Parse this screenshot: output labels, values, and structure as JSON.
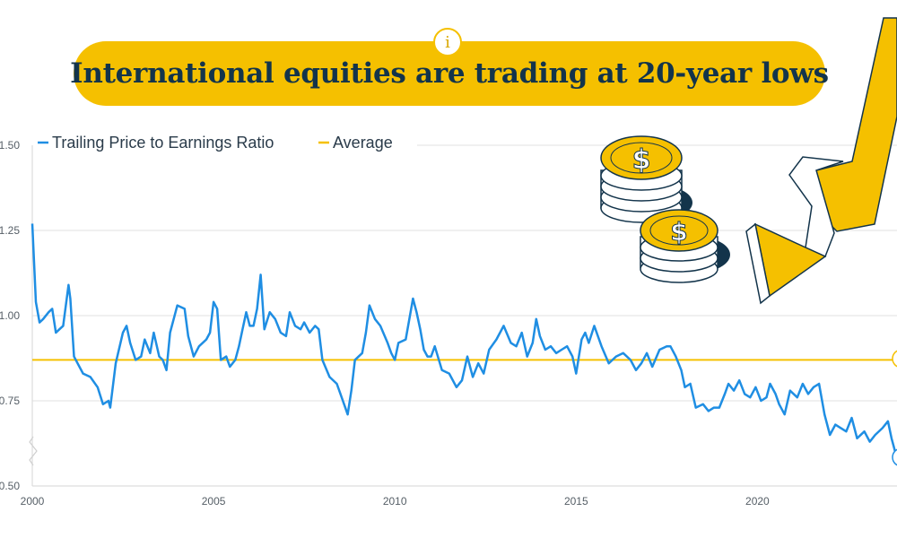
{
  "title": "International equities are trading at 20-year lows",
  "info_badge": "i",
  "colors": {
    "series": "#1f8ee3",
    "average": "#f5c000",
    "title_bg": "#f5c000",
    "title_text": "#13344b",
    "grid": "#e2e2e2"
  },
  "chart_data": {
    "type": "line",
    "title": "",
    "xlabel": "",
    "ylabel": "",
    "xlim": [
      2000,
      2023.8
    ],
    "ylim": [
      0.5,
      1.5
    ],
    "x_ticks": [
      2000,
      2005,
      2010,
      2015,
      2020
    ],
    "y_ticks": [
      0.5,
      0.75,
      1.0,
      1.25,
      1.5
    ],
    "y_tick_labels": [
      "0.50",
      "0.75",
      "1.00",
      "1.25",
      "1.50"
    ],
    "grid": true,
    "legend_position": "top-left",
    "series": [
      {
        "name": "Trailing Price to Earnings Ratio",
        "x": [
          2000.0,
          2000.1,
          2000.2,
          2000.3,
          2000.45,
          2000.55,
          2000.65,
          2000.75,
          2000.85,
          2001.0,
          2001.05,
          2001.15,
          2001.25,
          2001.4,
          2001.6,
          2001.8,
          2001.95,
          2002.1,
          2002.15,
          2002.3,
          2002.5,
          2002.6,
          2002.7,
          2002.85,
          2003.0,
          2003.1,
          2003.25,
          2003.35,
          2003.5,
          2003.6,
          2003.7,
          2003.8,
          2004.0,
          2004.2,
          2004.3,
          2004.45,
          2004.6,
          2004.8,
          2004.9,
          2005.0,
          2005.1,
          2005.2,
          2005.35,
          2005.45,
          2005.6,
          2005.7,
          2005.8,
          2005.9,
          2006.0,
          2006.1,
          2006.2,
          2006.3,
          2006.4,
          2006.55,
          2006.7,
          2006.85,
          2007.0,
          2007.1,
          2007.25,
          2007.4,
          2007.5,
          2007.65,
          2007.8,
          2007.9,
          2008.0,
          2008.2,
          2008.4,
          2008.6,
          2008.7,
          2008.8,
          2008.9,
          2009.0,
          2009.1,
          2009.2,
          2009.3,
          2009.45,
          2009.6,
          2009.8,
          2009.9,
          2010.0,
          2010.1,
          2010.3,
          2010.5,
          2010.6,
          2010.7,
          2010.8,
          2010.9,
          2011.0,
          2011.1,
          2011.3,
          2011.5,
          2011.7,
          2011.85,
          2012.0,
          2012.15,
          2012.3,
          2012.45,
          2012.6,
          2012.8,
          2013.0,
          2013.2,
          2013.35,
          2013.5,
          2013.65,
          2013.8,
          2013.9,
          2014.0,
          2014.15,
          2014.3,
          2014.45,
          2014.6,
          2014.75,
          2014.9,
          2015.0,
          2015.15,
          2015.25,
          2015.35,
          2015.5,
          2015.7,
          2015.9,
          2016.1,
          2016.3,
          2016.5,
          2016.65,
          2016.8,
          2016.95,
          2017.1,
          2017.3,
          2017.5,
          2017.6,
          2017.75,
          2017.9,
          2018.0,
          2018.15,
          2018.3,
          2018.5,
          2018.65,
          2018.8,
          2018.95,
          2019.1,
          2019.2,
          2019.35,
          2019.5,
          2019.65,
          2019.8,
          2019.95,
          2020.1,
          2020.25,
          2020.35,
          2020.5,
          2020.6,
          2020.75,
          2020.9,
          2021.1,
          2021.25,
          2021.4,
          2021.55,
          2021.7,
          2021.85,
          2022.0,
          2022.15,
          2022.3,
          2022.45,
          2022.6,
          2022.75,
          2022.95,
          2023.1,
          2023.25,
          2023.45,
          2023.6,
          2023.7,
          2023.8
        ],
        "values": [
          1.27,
          1.04,
          0.98,
          0.99,
          1.01,
          1.02,
          0.95,
          0.96,
          0.97,
          1.09,
          1.05,
          0.88,
          0.86,
          0.83,
          0.82,
          0.79,
          0.74,
          0.75,
          0.73,
          0.86,
          0.95,
          0.97,
          0.92,
          0.87,
          0.88,
          0.93,
          0.89,
          0.95,
          0.88,
          0.87,
          0.84,
          0.95,
          1.03,
          1.02,
          0.94,
          0.88,
          0.91,
          0.93,
          0.95,
          1.04,
          1.02,
          0.87,
          0.88,
          0.85,
          0.87,
          0.91,
          0.96,
          1.01,
          0.97,
          0.97,
          1.02,
          1.12,
          0.96,
          1.01,
          0.99,
          0.95,
          0.94,
          1.01,
          0.97,
          0.96,
          0.98,
          0.95,
          0.97,
          0.96,
          0.87,
          0.82,
          0.8,
          0.74,
          0.71,
          0.78,
          0.87,
          0.88,
          0.89,
          0.95,
          1.03,
          0.99,
          0.97,
          0.92,
          0.89,
          0.87,
          0.92,
          0.93,
          1.05,
          1.01,
          0.96,
          0.9,
          0.88,
          0.88,
          0.91,
          0.84,
          0.83,
          0.79,
          0.81,
          0.88,
          0.82,
          0.86,
          0.83,
          0.9,
          0.93,
          0.97,
          0.92,
          0.91,
          0.95,
          0.88,
          0.92,
          0.99,
          0.94,
          0.9,
          0.91,
          0.89,
          0.9,
          0.91,
          0.88,
          0.83,
          0.93,
          0.95,
          0.92,
          0.97,
          0.91,
          0.86,
          0.88,
          0.89,
          0.87,
          0.84,
          0.86,
          0.89,
          0.85,
          0.9,
          0.91,
          0.91,
          0.88,
          0.84,
          0.79,
          0.8,
          0.73,
          0.74,
          0.72,
          0.73,
          0.73,
          0.77,
          0.8,
          0.78,
          0.81,
          0.77,
          0.76,
          0.79,
          0.75,
          0.76,
          0.8,
          0.77,
          0.74,
          0.71,
          0.78,
          0.76,
          0.8,
          0.77,
          0.79,
          0.8,
          0.71,
          0.65,
          0.68,
          0.67,
          0.66,
          0.7,
          0.64,
          0.66,
          0.63,
          0.65,
          0.67,
          0.69,
          0.64,
          0.6
        ]
      },
      {
        "name": "Average",
        "x": [
          2000,
          2023.8
        ],
        "values": [
          0.87,
          0.87
        ]
      }
    ]
  }
}
